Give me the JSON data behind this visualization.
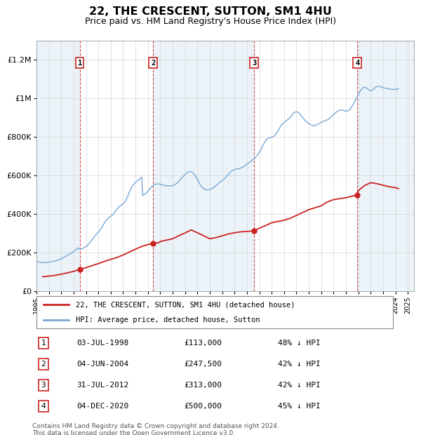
{
  "title": "22, THE CRESCENT, SUTTON, SM1 4HU",
  "subtitle": "Price paid vs. HM Land Registry's House Price Index (HPI)",
  "ylabel_ticks": [
    "£0",
    "£200K",
    "£400K",
    "£600K",
    "£800K",
    "£1M",
    "£1.2M"
  ],
  "ytick_values": [
    0,
    200000,
    400000,
    600000,
    800000,
    1000000,
    1200000
  ],
  "ylim": [
    0,
    1300000
  ],
  "xlim_start": 1995.0,
  "xlim_end": 2025.5,
  "hpi_color": "#7aa8d4",
  "hpi_fill_color": "#c8ddf0",
  "price_color": "#cc2222",
  "transactions": [
    {
      "id": 1,
      "date": "03-JUL-1998",
      "year": 1998.5,
      "price": 113000,
      "pct": "48%",
      "dir": "↓"
    },
    {
      "id": 2,
      "date": "04-JUN-2004",
      "year": 2004.42,
      "price": 247500,
      "pct": "42%",
      "dir": "↓"
    },
    {
      "id": 3,
      "date": "31-JUL-2012",
      "year": 2012.58,
      "price": 313000,
      "pct": "42%",
      "dir": "↓"
    },
    {
      "id": 4,
      "date": "04-DEC-2020",
      "year": 2020.92,
      "price": 500000,
      "pct": "45%",
      "dir": "↓"
    }
  ],
  "legend_line1": "22, THE CRESCENT, SUTTON, SM1 4HU (detached house)",
  "legend_line2": "HPI: Average price, detached house, Sutton",
  "footer": "Contains HM Land Registry data © Crown copyright and database right 2024.\nThis data is licensed under the Open Government Licence v3.0.",
  "hpi_years": [
    1995.0,
    1995.083,
    1995.167,
    1995.25,
    1995.333,
    1995.417,
    1995.5,
    1995.583,
    1995.667,
    1995.75,
    1995.833,
    1995.917,
    1996.0,
    1996.083,
    1996.167,
    1996.25,
    1996.333,
    1996.417,
    1996.5,
    1996.583,
    1996.667,
    1996.75,
    1996.833,
    1996.917,
    1997.0,
    1997.083,
    1997.167,
    1997.25,
    1997.333,
    1997.417,
    1997.5,
    1997.583,
    1997.667,
    1997.75,
    1997.833,
    1997.917,
    1998.0,
    1998.083,
    1998.167,
    1998.25,
    1998.333,
    1998.417,
    1998.5,
    1998.583,
    1998.667,
    1998.75,
    1998.833,
    1998.917,
    1999.0,
    1999.083,
    1999.167,
    1999.25,
    1999.333,
    1999.417,
    1999.5,
    1999.583,
    1999.667,
    1999.75,
    1999.833,
    1999.917,
    2000.0,
    2000.083,
    2000.167,
    2000.25,
    2000.333,
    2000.417,
    2000.5,
    2000.583,
    2000.667,
    2000.75,
    2000.833,
    2000.917,
    2001.0,
    2001.083,
    2001.167,
    2001.25,
    2001.333,
    2001.417,
    2001.5,
    2001.583,
    2001.667,
    2001.75,
    2001.833,
    2001.917,
    2002.0,
    2002.083,
    2002.167,
    2002.25,
    2002.333,
    2002.417,
    2002.5,
    2002.583,
    2002.667,
    2002.75,
    2002.833,
    2002.917,
    2003.0,
    2003.083,
    2003.167,
    2003.25,
    2003.333,
    2003.417,
    2003.5,
    2003.583,
    2003.667,
    2003.75,
    2003.833,
    2003.917,
    2004.0,
    2004.083,
    2004.167,
    2004.25,
    2004.333,
    2004.417,
    2004.5,
    2004.583,
    2004.667,
    2004.75,
    2004.833,
    2004.917,
    2005.0,
    2005.083,
    2005.167,
    2005.25,
    2005.333,
    2005.417,
    2005.5,
    2005.583,
    2005.667,
    2005.75,
    2005.833,
    2005.917,
    2006.0,
    2006.083,
    2006.167,
    2006.25,
    2006.333,
    2006.417,
    2006.5,
    2006.583,
    2006.667,
    2006.75,
    2006.833,
    2006.917,
    2007.0,
    2007.083,
    2007.167,
    2007.25,
    2007.333,
    2007.417,
    2007.5,
    2007.583,
    2007.667,
    2007.75,
    2007.833,
    2007.917,
    2008.0,
    2008.083,
    2008.167,
    2008.25,
    2008.333,
    2008.417,
    2008.5,
    2008.583,
    2008.667,
    2008.75,
    2008.833,
    2008.917,
    2009.0,
    2009.083,
    2009.167,
    2009.25,
    2009.333,
    2009.417,
    2009.5,
    2009.583,
    2009.667,
    2009.75,
    2009.833,
    2009.917,
    2010.0,
    2010.083,
    2010.167,
    2010.25,
    2010.333,
    2010.417,
    2010.5,
    2010.583,
    2010.667,
    2010.75,
    2010.833,
    2010.917,
    2011.0,
    2011.083,
    2011.167,
    2011.25,
    2011.333,
    2011.417,
    2011.5,
    2011.583,
    2011.667,
    2011.75,
    2011.833,
    2011.917,
    2012.0,
    2012.083,
    2012.167,
    2012.25,
    2012.333,
    2012.417,
    2012.5,
    2012.583,
    2012.667,
    2012.75,
    2012.833,
    2012.917,
    2013.0,
    2013.083,
    2013.167,
    2013.25,
    2013.333,
    2013.417,
    2013.5,
    2013.583,
    2013.667,
    2013.75,
    2013.833,
    2013.917,
    2014.0,
    2014.083,
    2014.167,
    2014.25,
    2014.333,
    2014.417,
    2014.5,
    2014.583,
    2014.667,
    2014.75,
    2014.833,
    2014.917,
    2015.0,
    2015.083,
    2015.167,
    2015.25,
    2015.333,
    2015.417,
    2015.5,
    2015.583,
    2015.667,
    2015.75,
    2015.833,
    2015.917,
    2016.0,
    2016.083,
    2016.167,
    2016.25,
    2016.333,
    2016.417,
    2016.5,
    2016.583,
    2016.667,
    2016.75,
    2016.833,
    2016.917,
    2017.0,
    2017.083,
    2017.167,
    2017.25,
    2017.333,
    2017.417,
    2017.5,
    2017.583,
    2017.667,
    2017.75,
    2017.833,
    2017.917,
    2018.0,
    2018.083,
    2018.167,
    2018.25,
    2018.333,
    2018.417,
    2018.5,
    2018.583,
    2018.667,
    2018.75,
    2018.833,
    2018.917,
    2019.0,
    2019.083,
    2019.167,
    2019.25,
    2019.333,
    2019.417,
    2019.5,
    2019.583,
    2019.667,
    2019.75,
    2019.833,
    2019.917,
    2020.0,
    2020.083,
    2020.167,
    2020.25,
    2020.333,
    2020.417,
    2020.5,
    2020.583,
    2020.667,
    2020.75,
    2020.833,
    2020.917,
    2021.0,
    2021.083,
    2021.167,
    2021.25,
    2021.333,
    2021.417,
    2021.5,
    2021.583,
    2021.667,
    2021.75,
    2021.833,
    2021.917,
    2022.0,
    2022.083,
    2022.167,
    2022.25,
    2022.333,
    2022.417,
    2022.5,
    2022.583,
    2022.667,
    2022.75,
    2022.833,
    2022.917,
    2023.0,
    2023.083,
    2023.167,
    2023.25,
    2023.333,
    2023.417,
    2023.5,
    2023.583,
    2023.667,
    2023.75,
    2023.833,
    2023.917,
    2024.0,
    2024.083,
    2024.167,
    2024.25
  ],
  "hpi_vals": [
    155000,
    153000,
    152000,
    151000,
    150000,
    149000,
    149000,
    148000,
    148000,
    148000,
    149000,
    150000,
    151000,
    152000,
    153000,
    154000,
    155000,
    156000,
    157000,
    158000,
    160000,
    162000,
    164000,
    166000,
    168000,
    171000,
    174000,
    177000,
    180000,
    183000,
    186000,
    189000,
    192000,
    195000,
    198000,
    202000,
    206000,
    210000,
    215000,
    220000,
    225000,
    220000,
    217000,
    218000,
    220000,
    222000,
    225000,
    228000,
    232000,
    236000,
    241000,
    247000,
    254000,
    261000,
    268000,
    275000,
    282000,
    289000,
    295000,
    301000,
    307000,
    313000,
    320000,
    328000,
    337000,
    346000,
    355000,
    363000,
    370000,
    376000,
    381000,
    385000,
    389000,
    393000,
    398000,
    404000,
    411000,
    418000,
    425000,
    432000,
    438000,
    443000,
    447000,
    450000,
    453000,
    458000,
    465000,
    475000,
    487000,
    500000,
    513000,
    525000,
    536000,
    545000,
    553000,
    560000,
    565000,
    569000,
    573000,
    577000,
    581000,
    586000,
    591000,
    497000,
    500000,
    503000,
    507000,
    512000,
    518000,
    525000,
    532000,
    538000,
    544000,
    549000,
    552000,
    554000,
    556000,
    557000,
    557000,
    556000,
    555000,
    554000,
    552000,
    550000,
    549000,
    548000,
    547000,
    547000,
    547000,
    547000,
    547000,
    547000,
    548000,
    550000,
    552000,
    556000,
    560000,
    565000,
    571000,
    577000,
    583000,
    589000,
    595000,
    601000,
    606000,
    611000,
    615000,
    618000,
    620000,
    621000,
    620000,
    617000,
    613000,
    607000,
    599000,
    590000,
    580000,
    570000,
    560000,
    551000,
    543000,
    537000,
    532000,
    529000,
    527000,
    526000,
    526000,
    527000,
    528000,
    530000,
    532000,
    535000,
    539000,
    543000,
    547000,
    552000,
    557000,
    562000,
    566000,
    570000,
    574000,
    578000,
    583000,
    588000,
    594000,
    600000,
    606000,
    612000,
    617000,
    622000,
    626000,
    629000,
    631000,
    633000,
    634000,
    635000,
    636000,
    637000,
    639000,
    641000,
    644000,
    647000,
    651000,
    655000,
    659000,
    663000,
    667000,
    671000,
    675000,
    679000,
    683000,
    688000,
    693000,
    699000,
    705000,
    712000,
    720000,
    729000,
    739000,
    750000,
    761000,
    771000,
    780000,
    787000,
    792000,
    795000,
    797000,
    798000,
    799000,
    801000,
    804000,
    809000,
    815000,
    823000,
    832000,
    841000,
    850000,
    858000,
    865000,
    871000,
    876000,
    880000,
    884000,
    888000,
    892000,
    897000,
    903000,
    909000,
    916000,
    922000,
    927000,
    930000,
    931000,
    930000,
    927000,
    922000,
    916000,
    909000,
    902000,
    895000,
    889000,
    883000,
    878000,
    874000,
    870000,
    867000,
    864000,
    862000,
    860000,
    859000,
    860000,
    861000,
    864000,
    867000,
    870000,
    873000,
    876000,
    879000,
    881000,
    883000,
    885000,
    887000,
    889000,
    892000,
    896000,
    901000,
    906000,
    911000,
    916000,
    921000,
    926000,
    930000,
    934000,
    937000,
    939000,
    940000,
    940000,
    939000,
    938000,
    936000,
    935000,
    935000,
    936000,
    939000,
    944000,
    951000,
    959000,
    969000,
    979000,
    990000,
    1000000,
    1010000,
    1020000,
    1030000,
    1040000,
    1048000,
    1053000,
    1057000,
    1058000,
    1057000,
    1054000,
    1050000,
    1045000,
    1040000,
    1040000,
    1042000,
    1045000,
    1050000,
    1055000,
    1059000,
    1062000,
    1063000,
    1063000,
    1062000,
    1060000,
    1058000,
    1056000,
    1055000,
    1054000,
    1053000,
    1052000,
    1051000,
    1050000,
    1049000,
    1048000,
    1047000,
    1047000,
    1047000,
    1047000,
    1048000,
    1050000,
    1052000
  ],
  "pp_years": [
    1995.5,
    1996.0,
    1996.5,
    1997.0,
    1997.5,
    1998.0,
    1998.5,
    1999.0,
    1999.5,
    2000.0,
    2000.5,
    2001.0,
    2001.5,
    2002.0,
    2002.5,
    2003.0,
    2003.5,
    2004.0,
    2004.42,
    2004.9,
    2005.0,
    2005.5,
    2006.0,
    2006.5,
    2007.0,
    2007.5,
    2008.0,
    2008.5,
    2009.0,
    2009.5,
    2010.0,
    2010.5,
    2011.0,
    2011.5,
    2012.0,
    2012.58,
    2013.0,
    2013.5,
    2014.0,
    2014.5,
    2015.0,
    2015.5,
    2016.0,
    2016.5,
    2017.0,
    2017.5,
    2018.0,
    2018.5,
    2019.0,
    2019.5,
    2020.0,
    2020.92,
    2021.0,
    2021.5,
    2022.0,
    2022.5,
    2023.0,
    2023.5,
    2024.0,
    2024.25
  ],
  "pp_vals": [
    75000,
    78000,
    82000,
    88000,
    95000,
    103000,
    113000,
    122000,
    133000,
    143000,
    155000,
    165000,
    175000,
    188000,
    203000,
    218000,
    232000,
    242000,
    247500,
    252000,
    258000,
    265000,
    272000,
    288000,
    302000,
    318000,
    303000,
    288000,
    272000,
    278000,
    287000,
    297000,
    303000,
    308000,
    310000,
    313000,
    327000,
    340000,
    355000,
    362000,
    368000,
    378000,
    393000,
    408000,
    423000,
    433000,
    443000,
    463000,
    475000,
    480000,
    485000,
    500000,
    522000,
    548000,
    563000,
    558000,
    550000,
    542000,
    537000,
    532000
  ]
}
